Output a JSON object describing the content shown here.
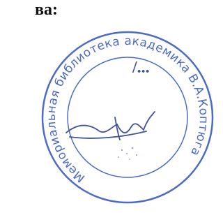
{
  "header": {
    "text": "ва:"
  },
  "stamp": {
    "ring_text": "Мемориальная библиотека академика В.А.Коптюга",
    "inner_text": "/..."
  }
}
